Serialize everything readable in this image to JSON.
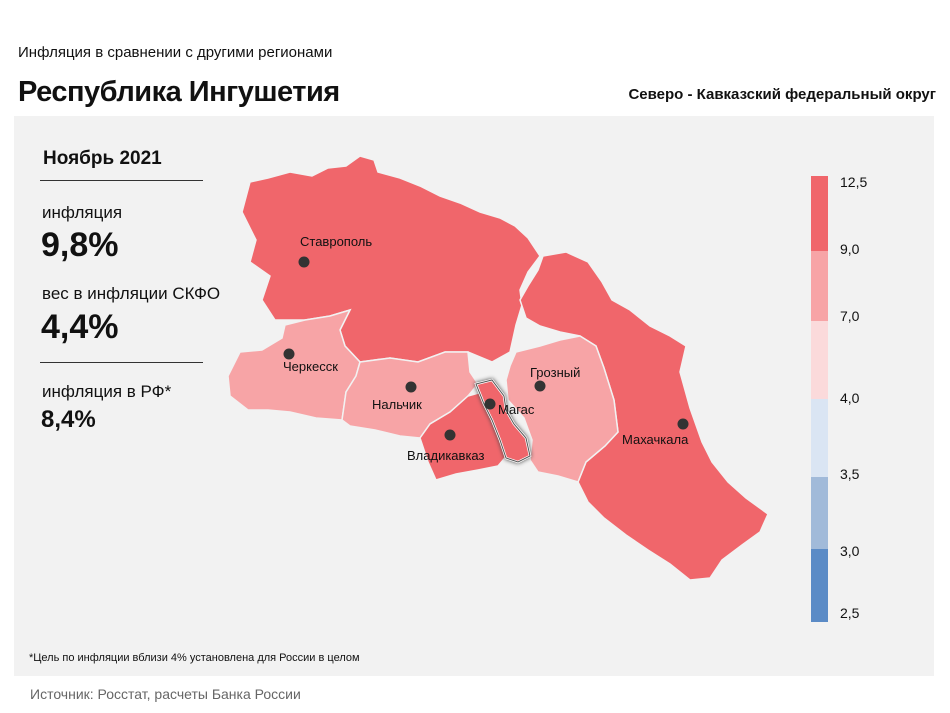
{
  "header": {
    "subtitle": "Инфляция  в сравнении  с другими  регионами",
    "title": "Республика Ингушетия",
    "district": "Северо - Кавказский федеральный округ"
  },
  "stats": {
    "period": "Ноябрь 2021",
    "inflation_label": "инфляция",
    "inflation_value": "9,8%",
    "weight_label": "вес в инфляции  СКФО",
    "weight_value": "4,4%",
    "russia_label": "инфляция  в РФ*",
    "russia_value": "8,4%"
  },
  "legend": {
    "ticks": [
      "12,5",
      "9,0",
      "7,0",
      "4,0",
      "3,5",
      "3,0",
      "2,5"
    ],
    "colors": [
      "#f0666b",
      "#f7a4a6",
      "#fbdadb",
      "#dae5f3",
      "#a1bad9",
      "#5b8bc6"
    ]
  },
  "regions": [
    {
      "id": "stavropol",
      "color": "#f0666b"
    },
    {
      "id": "dagestan",
      "color": "#f0666b"
    },
    {
      "id": "karachay-cherkessia",
      "color": "#f7a4a6"
    },
    {
      "id": "kabardino-balkaria",
      "color": "#f7a4a6"
    },
    {
      "id": "north-ossetia",
      "color": "#f0666b"
    },
    {
      "id": "ingushetia",
      "color": "#f0666b"
    },
    {
      "id": "chechnya",
      "color": "#f7a4a6"
    }
  ],
  "cities": [
    {
      "name": "Ставрополь"
    },
    {
      "name": "Черкесск"
    },
    {
      "name": "Нальчик"
    },
    {
      "name": "Магас"
    },
    {
      "name": "Владикавказ"
    },
    {
      "name": "Грозный"
    },
    {
      "name": "Махачкала"
    }
  ],
  "footnote": "*Цель по инфляции вблизи 4% установлена для России в целом",
  "source": "Источник: Росстат, расчеты Банка России"
}
